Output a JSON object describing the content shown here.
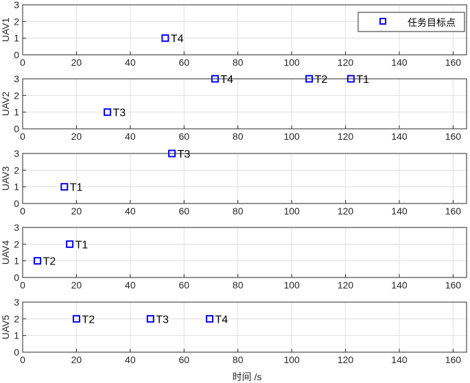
{
  "chart_data": {
    "type": "scatter",
    "xlabel": "时间 /s",
    "xlim": [
      0,
      165
    ],
    "xticks": [
      0,
      20,
      40,
      60,
      80,
      100,
      120,
      140,
      160
    ],
    "ylim": [
      0,
      3
    ],
    "yticks": [
      0,
      1,
      2,
      3
    ],
    "grid": true,
    "marker": "square",
    "marker_color": "#0000ff",
    "legend": {
      "entries": [
        "任务目标点"
      ],
      "placement": "top-right",
      "subplot": 0
    },
    "subplots": [
      {
        "ylabel": "UAV1",
        "points": [
          {
            "x": 53,
            "y": 1,
            "label": "T4"
          }
        ]
      },
      {
        "ylabel": "UAV2",
        "points": [
          {
            "x": 31.5,
            "y": 1,
            "label": "T3"
          },
          {
            "x": 71.5,
            "y": 3,
            "label": "T4"
          },
          {
            "x": 106.5,
            "y": 3,
            "label": "T2"
          },
          {
            "x": 122,
            "y": 3,
            "label": "T1"
          }
        ]
      },
      {
        "ylabel": "UAV3",
        "points": [
          {
            "x": 15.5,
            "y": 1,
            "label": "T1"
          },
          {
            "x": 55.5,
            "y": 3,
            "label": "T3"
          }
        ]
      },
      {
        "ylabel": "UAV4",
        "points": [
          {
            "x": 5.5,
            "y": 1,
            "label": "T2"
          },
          {
            "x": 17.5,
            "y": 2,
            "label": "T1"
          }
        ]
      },
      {
        "ylabel": "UAV5",
        "points": [
          {
            "x": 20,
            "y": 2,
            "label": "T2"
          },
          {
            "x": 47.5,
            "y": 2,
            "label": "T3"
          },
          {
            "x": 69.5,
            "y": 2,
            "label": "T4"
          }
        ]
      }
    ]
  }
}
